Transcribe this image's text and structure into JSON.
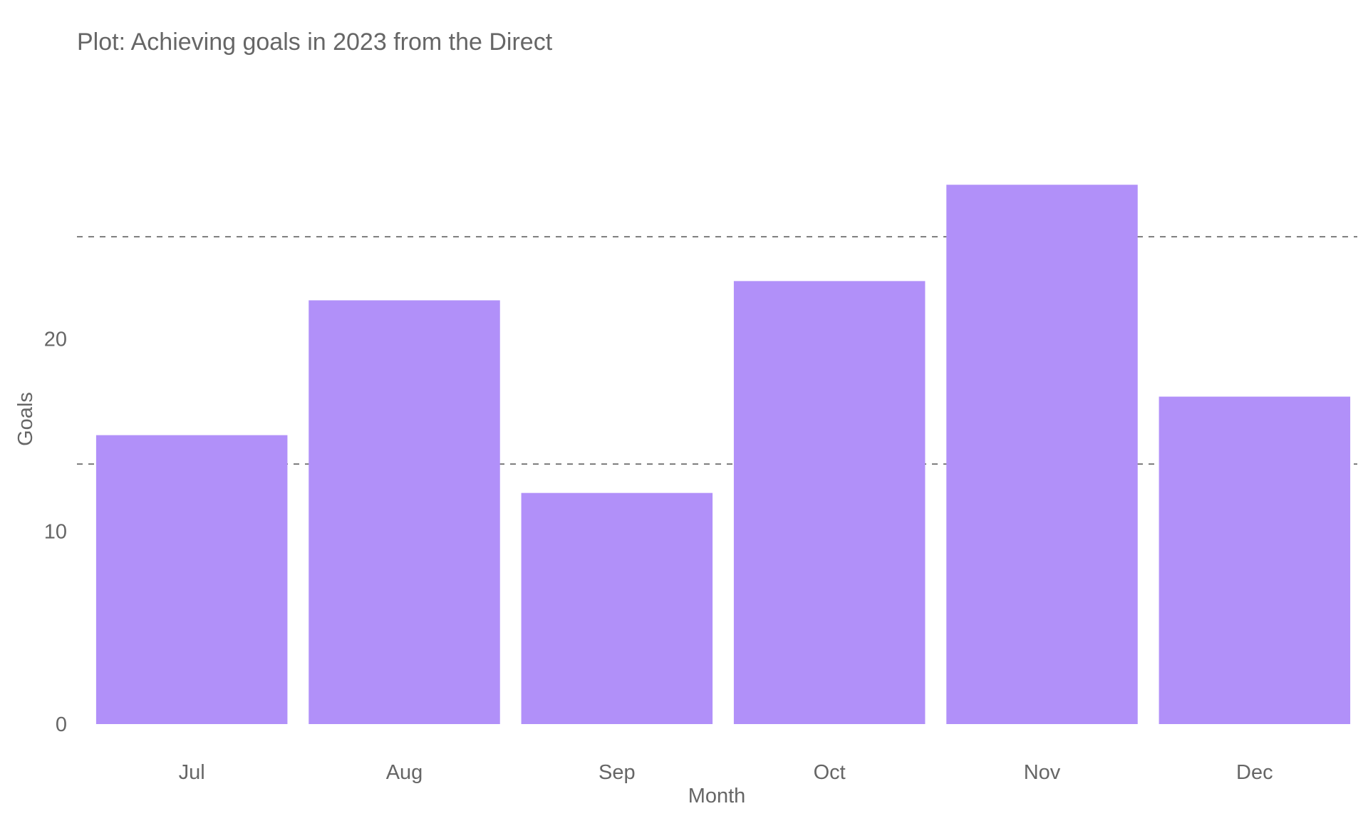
{
  "chart_data": {
    "type": "bar",
    "title": "Plot: Achieving goals in 2023 from the Direct",
    "xlabel": "Month",
    "ylabel": "Goals",
    "categories": [
      "Jul",
      "Aug",
      "Sep",
      "Oct",
      "Nov",
      "Dec"
    ],
    "values": [
      15,
      22,
      12,
      23,
      28,
      17
    ],
    "ylim": [
      0,
      33.3
    ],
    "yticks": [
      {
        "value": 0,
        "label": "0"
      },
      {
        "value": 10,
        "label": "10"
      },
      {
        "value": 20,
        "label": "20"
      }
    ],
    "reference_lines": [
      13.5,
      25.3
    ],
    "grid": false,
    "bar_color": "#b190f9",
    "reference_line_color": "#555555",
    "text_color": "#666666"
  }
}
